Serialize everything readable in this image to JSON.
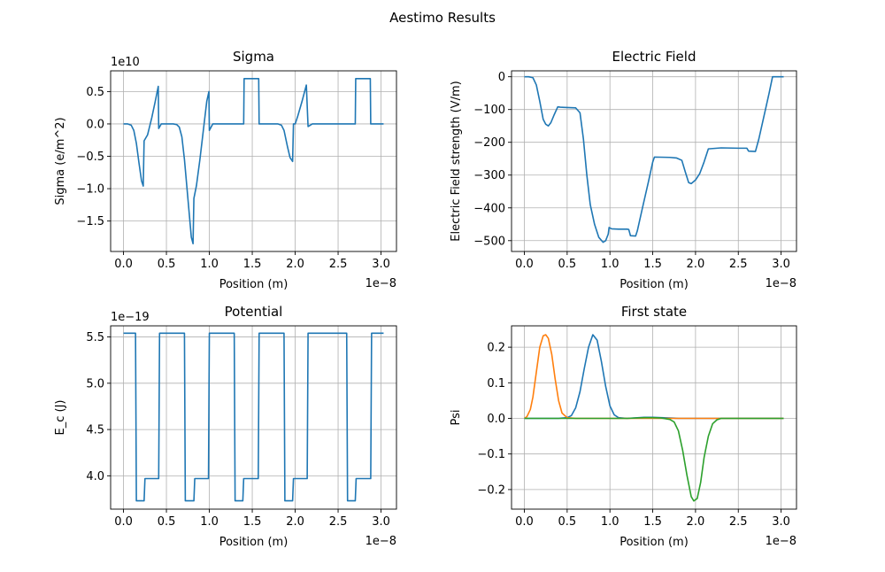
{
  "figure": {
    "title": "Aestimo Results"
  },
  "chart_data": [
    {
      "type": "line",
      "title": "Sigma",
      "xlabel": "Position (m)",
      "ylabel": "Sigma (e/m^2)",
      "x_offset_label": "1e−8",
      "y_offset_label": "1e10",
      "xlim": [
        -0.15,
        3.18
      ],
      "ylim": [
        -1.97,
        0.82
      ],
      "x_ticks": [
        0.0,
        0.5,
        1.0,
        1.5,
        2.0,
        2.5,
        3.0
      ],
      "x_tick_labels": [
        "0.0",
        "0.5",
        "1.0",
        "1.5",
        "2.0",
        "2.5",
        "3.0"
      ],
      "y_ticks": [
        0.5,
        0.0,
        -0.5,
        -1.0,
        -1.5
      ],
      "y_tick_labels": [
        "0.5",
        "0.0",
        "−0.5",
        "−1.0",
        "−1.5"
      ],
      "grid": true,
      "series": [
        {
          "color": "#1f77b4",
          "points": [
            [
              0,
              0
            ],
            [
              0.05,
              0
            ],
            [
              0.09,
              -0.02
            ],
            [
              0.12,
              -0.1
            ],
            [
              0.15,
              -0.3
            ],
            [
              0.18,
              -0.6
            ],
            [
              0.21,
              -0.88
            ],
            [
              0.23,
              -0.96
            ],
            [
              0.24,
              -0.26
            ],
            [
              0.28,
              -0.17
            ],
            [
              0.33,
              0.1
            ],
            [
              0.37,
              0.35
            ],
            [
              0.405,
              0.58
            ],
            [
              0.41,
              -0.07
            ],
            [
              0.44,
              0
            ],
            [
              0.5,
              0
            ],
            [
              0.58,
              0
            ],
            [
              0.62,
              -0.01
            ],
            [
              0.65,
              -0.05
            ],
            [
              0.68,
              -0.2
            ],
            [
              0.71,
              -0.55
            ],
            [
              0.74,
              -1.0
            ],
            [
              0.77,
              -1.45
            ],
            [
              0.79,
              -1.75
            ],
            [
              0.81,
              -1.85
            ],
            [
              0.82,
              -1.15
            ],
            [
              0.85,
              -0.95
            ],
            [
              0.89,
              -0.55
            ],
            [
              0.93,
              -0.1
            ],
            [
              0.97,
              0.35
            ],
            [
              0.995,
              0.5
            ],
            [
              1.0,
              -0.1
            ],
            [
              1.04,
              0
            ],
            [
              1.2,
              0
            ],
            [
              1.4,
              0
            ],
            [
              1.405,
              0.7
            ],
            [
              1.5,
              0.7
            ],
            [
              1.575,
              0.7
            ],
            [
              1.58,
              0
            ],
            [
              1.7,
              0
            ],
            [
              1.8,
              0
            ],
            [
              1.84,
              -0.02
            ],
            [
              1.87,
              -0.1
            ],
            [
              1.91,
              -0.35
            ],
            [
              1.94,
              -0.52
            ],
            [
              1.97,
              -0.58
            ],
            [
              1.98,
              0
            ],
            [
              2.0,
              0
            ],
            [
              2.03,
              0.12
            ],
            [
              2.08,
              0.35
            ],
            [
              2.13,
              0.6
            ],
            [
              2.15,
              -0.04
            ],
            [
              2.2,
              0
            ],
            [
              2.5,
              0
            ],
            [
              2.7,
              0
            ],
            [
              2.705,
              0.7
            ],
            [
              2.8,
              0.7
            ],
            [
              2.875,
              0.7
            ],
            [
              2.88,
              0
            ],
            [
              3.03,
              0
            ]
          ]
        }
      ]
    },
    {
      "type": "line",
      "title": "Electric Field",
      "xlabel": "Position (m)",
      "ylabel": "Electric Field strength (V/m)",
      "x_offset_label": "1e−8",
      "xlim": [
        -0.15,
        3.18
      ],
      "ylim": [
        -533,
        18
      ],
      "x_ticks": [
        0.0,
        0.5,
        1.0,
        1.5,
        2.0,
        2.5,
        3.0
      ],
      "x_tick_labels": [
        "0.0",
        "0.5",
        "1.0",
        "1.5",
        "2.0",
        "2.5",
        "3.0"
      ],
      "y_ticks": [
        0,
        -100,
        -200,
        -300,
        -400,
        -500
      ],
      "y_tick_labels": [
        "0",
        "−100",
        "−200",
        "−300",
        "−400",
        "−500"
      ],
      "grid": true,
      "series": [
        {
          "color": "#1f77b4",
          "points": [
            [
              0,
              0
            ],
            [
              0.05,
              0
            ],
            [
              0.1,
              -3
            ],
            [
              0.14,
              -25
            ],
            [
              0.18,
              -75
            ],
            [
              0.22,
              -130
            ],
            [
              0.25,
              -145
            ],
            [
              0.28,
              -150
            ],
            [
              0.31,
              -140
            ],
            [
              0.35,
              -115
            ],
            [
              0.39,
              -92
            ],
            [
              0.42,
              -93
            ],
            [
              0.5,
              -94
            ],
            [
              0.6,
              -95
            ],
            [
              0.65,
              -110
            ],
            [
              0.69,
              -190
            ],
            [
              0.73,
              -300
            ],
            [
              0.77,
              -390
            ],
            [
              0.82,
              -450
            ],
            [
              0.87,
              -490
            ],
            [
              0.92,
              -505
            ],
            [
              0.95,
              -500
            ],
            [
              0.98,
              -480
            ],
            [
              0.99,
              -460
            ],
            [
              1.02,
              -464
            ],
            [
              1.1,
              -465
            ],
            [
              1.2,
              -465
            ],
            [
              1.22,
              -466
            ],
            [
              1.24,
              -485
            ],
            [
              1.3,
              -486
            ],
            [
              1.32,
              -470
            ],
            [
              1.38,
              -400
            ],
            [
              1.45,
              -320
            ],
            [
              1.5,
              -260
            ],
            [
              1.52,
              -245
            ],
            [
              1.7,
              -246
            ],
            [
              1.78,
              -248
            ],
            [
              1.84,
              -255
            ],
            [
              1.88,
              -290
            ],
            [
              1.92,
              -323
            ],
            [
              1.95,
              -326
            ],
            [
              2.0,
              -315
            ],
            [
              2.05,
              -295
            ],
            [
              2.1,
              -260
            ],
            [
              2.15,
              -220
            ],
            [
              2.3,
              -217
            ],
            [
              2.5,
              -218
            ],
            [
              2.6,
              -218
            ],
            [
              2.62,
              -227
            ],
            [
              2.7,
              -228
            ],
            [
              2.74,
              -190
            ],
            [
              2.8,
              -120
            ],
            [
              2.86,
              -50
            ],
            [
              2.9,
              0
            ],
            [
              2.95,
              0
            ],
            [
              3.03,
              0
            ]
          ]
        }
      ]
    },
    {
      "type": "line",
      "title": "Potential",
      "xlabel": "Position (m)",
      "ylabel": "E_c (J)",
      "x_offset_label": "1e−8",
      "y_offset_label": "1e−19",
      "xlim": [
        -0.15,
        3.18
      ],
      "ylim": [
        3.64,
        5.62
      ],
      "x_ticks": [
        0.0,
        0.5,
        1.0,
        1.5,
        2.0,
        2.5,
        3.0
      ],
      "x_tick_labels": [
        "0.0",
        "0.5",
        "1.0",
        "1.5",
        "2.0",
        "2.5",
        "3.0"
      ],
      "y_ticks": [
        5.5,
        5.0,
        4.5,
        4.0
      ],
      "y_tick_labels": [
        "5.5",
        "5.0",
        "4.5",
        "4.0"
      ],
      "grid": true,
      "series": [
        {
          "color": "#1f77b4",
          "points": [
            [
              0,
              5.54
            ],
            [
              0.14,
              5.54
            ],
            [
              0.15,
              3.73
            ],
            [
              0.24,
              3.73
            ],
            [
              0.25,
              3.97
            ],
            [
              0.41,
              3.97
            ],
            [
              0.42,
              5.54
            ],
            [
              0.71,
              5.54
            ],
            [
              0.72,
              3.73
            ],
            [
              0.82,
              3.73
            ],
            [
              0.83,
              3.97
            ],
            [
              0.99,
              3.97
            ],
            [
              1.0,
              5.54
            ],
            [
              1.29,
              5.54
            ],
            [
              1.3,
              3.73
            ],
            [
              1.39,
              3.73
            ],
            [
              1.4,
              3.97
            ],
            [
              1.57,
              3.97
            ],
            [
              1.58,
              5.54
            ],
            [
              1.87,
              5.54
            ],
            [
              1.88,
              3.73
            ],
            [
              1.97,
              3.73
            ],
            [
              1.98,
              3.97
            ],
            [
              2.14,
              3.97
            ],
            [
              2.15,
              5.54
            ],
            [
              2.6,
              5.54
            ],
            [
              2.61,
              3.73
            ],
            [
              2.7,
              3.73
            ],
            [
              2.71,
              3.97
            ],
            [
              2.88,
              3.97
            ],
            [
              2.89,
              5.54
            ],
            [
              3.03,
              5.54
            ]
          ]
        }
      ]
    },
    {
      "type": "line",
      "title": "First state",
      "xlabel": "Position (m)",
      "ylabel": "Psi",
      "x_offset_label": "1e−8",
      "xlim": [
        -0.15,
        3.18
      ],
      "ylim": [
        -0.255,
        0.26
      ],
      "x_ticks": [
        0.0,
        0.5,
        1.0,
        1.5,
        2.0,
        2.5,
        3.0
      ],
      "x_tick_labels": [
        "0.0",
        "0.5",
        "1.0",
        "1.5",
        "2.0",
        "2.5",
        "3.0"
      ],
      "y_ticks": [
        0.2,
        0.1,
        0.0,
        -0.1,
        -0.2
      ],
      "y_tick_labels": [
        "0.2",
        "0.1",
        "0.0",
        "−0.1",
        "−0.2"
      ],
      "grid": true,
      "series": [
        {
          "color": "#1f77b4",
          "points": [
            [
              0,
              0
            ],
            [
              0.2,
              0
            ],
            [
              0.4,
              0
            ],
            [
              0.5,
              0.002
            ],
            [
              0.55,
              0.008
            ],
            [
              0.6,
              0.03
            ],
            [
              0.65,
              0.075
            ],
            [
              0.7,
              0.14
            ],
            [
              0.75,
              0.2
            ],
            [
              0.8,
              0.235
            ],
            [
              0.85,
              0.22
            ],
            [
              0.9,
              0.16
            ],
            [
              0.95,
              0.09
            ],
            [
              1.0,
              0.035
            ],
            [
              1.05,
              0.01
            ],
            [
              1.1,
              0.002
            ],
            [
              1.2,
              0
            ],
            [
              1.4,
              0.003
            ],
            [
              1.5,
              0.003
            ],
            [
              1.6,
              0.002
            ],
            [
              1.8,
              0
            ],
            [
              2.2,
              0
            ],
            [
              3.03,
              0
            ]
          ]
        },
        {
          "color": "#ff7f0e",
          "points": [
            [
              0,
              0
            ],
            [
              0.03,
              0.005
            ],
            [
              0.07,
              0.025
            ],
            [
              0.1,
              0.06
            ],
            [
              0.14,
              0.13
            ],
            [
              0.18,
              0.2
            ],
            [
              0.22,
              0.232
            ],
            [
              0.25,
              0.235
            ],
            [
              0.28,
              0.225
            ],
            [
              0.32,
              0.18
            ],
            [
              0.36,
              0.11
            ],
            [
              0.4,
              0.05
            ],
            [
              0.44,
              0.015
            ],
            [
              0.5,
              0.002
            ],
            [
              0.6,
              0
            ],
            [
              1.0,
              0
            ],
            [
              1.5,
              0
            ],
            [
              3.03,
              0
            ]
          ]
        },
        {
          "color": "#2ca02c",
          "points": [
            [
              0,
              0
            ],
            [
              0.3,
              0
            ],
            [
              0.8,
              0
            ],
            [
              1.2,
              0
            ],
            [
              1.4,
              0.002
            ],
            [
              1.5,
              0.002
            ],
            [
              1.6,
              0.001
            ],
            [
              1.7,
              -0.003
            ],
            [
              1.75,
              -0.01
            ],
            [
              1.8,
              -0.035
            ],
            [
              1.85,
              -0.09
            ],
            [
              1.9,
              -0.16
            ],
            [
              1.95,
              -0.22
            ],
            [
              1.98,
              -0.232
            ],
            [
              2.02,
              -0.225
            ],
            [
              2.06,
              -0.18
            ],
            [
              2.1,
              -0.11
            ],
            [
              2.15,
              -0.05
            ],
            [
              2.2,
              -0.015
            ],
            [
              2.25,
              -0.004
            ],
            [
              2.3,
              0
            ],
            [
              2.5,
              0
            ],
            [
              3.03,
              0
            ]
          ]
        }
      ]
    }
  ]
}
